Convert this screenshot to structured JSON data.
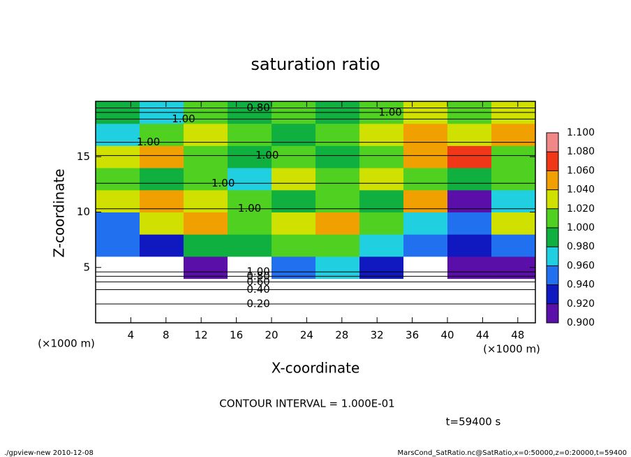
{
  "chart_data": {
    "type": "contour",
    "title": "saturation ratio",
    "xlabel": "X-coordinate",
    "ylabel": "Z-coordinate",
    "x_unit_left": "(×1000 m)",
    "x_unit_right": "(×1000 m)",
    "contour_interval": "CONTOUR INTERVAL = 1.000E-01",
    "time_label": "t=59400 s",
    "footer_left": "./gpview-new   2010-12-08",
    "footer_right": "MarsCond_SatRatio.nc@SatRatio,x=0:50000,z=0:20000,t=59400",
    "xlim": [
      0,
      50
    ],
    "ylim": [
      0,
      20
    ],
    "xticks": [
      4,
      8,
      12,
      16,
      20,
      24,
      28,
      32,
      36,
      40,
      44,
      48
    ],
    "yticks": [
      5,
      10,
      15
    ],
    "x": [
      2.5,
      7.5,
      12.5,
      17.5,
      22.5,
      27.5,
      32.5,
      37.5,
      42.5,
      47.5
    ],
    "y": [
      1,
      3,
      5,
      7,
      9,
      11,
      13,
      15,
      17,
      19
    ],
    "z": [
      [
        0.2,
        0.2,
        0.2,
        0.2,
        0.2,
        0.2,
        0.2,
        0.2,
        0.2,
        0.2
      ],
      [
        0.5,
        0.5,
        0.5,
        0.5,
        0.5,
        0.5,
        0.5,
        0.5,
        0.5,
        0.5
      ],
      [
        0.85,
        0.88,
        0.9,
        0.86,
        0.95,
        0.97,
        0.93,
        0.88,
        0.9,
        0.92
      ],
      [
        0.96,
        0.94,
        0.99,
        1.0,
        1.02,
        1.01,
        0.97,
        0.95,
        0.94,
        0.96
      ],
      [
        0.95,
        1.03,
        1.05,
        1.01,
        1.04,
        1.06,
        1.02,
        0.98,
        0.95,
        1.03
      ],
      [
        1.04,
        1.06,
        1.03,
        1.01,
        1.0,
        1.02,
        1.0,
        1.05,
        0.92,
        0.97
      ],
      [
        1.01,
        1.0,
        1.02,
        0.97,
        1.03,
        1.01,
        1.04,
        1.02,
        1.0,
        1.01
      ],
      [
        1.03,
        1.05,
        1.01,
        1.0,
        1.01,
        1.0,
        1.02,
        1.05,
        1.07,
        1.02
      ],
      [
        0.97,
        1.02,
        1.03,
        1.01,
        1.0,
        1.02,
        1.04,
        1.06,
        1.03,
        1.05
      ],
      [
        1.0,
        0.97,
        1.01,
        1.0,
        1.02,
        1.0,
        1.01,
        1.03,
        1.02,
        1.04
      ]
    ],
    "colorbar_ticks": [
      {
        "value": 0.9,
        "label": "0.900"
      },
      {
        "value": 0.92,
        "label": "0.920"
      },
      {
        "value": 0.94,
        "label": "0.940"
      },
      {
        "value": 0.96,
        "label": "0.960"
      },
      {
        "value": 0.98,
        "label": "0.980"
      },
      {
        "value": 1.0,
        "label": "1.000"
      },
      {
        "value": 1.02,
        "label": "1.020"
      },
      {
        "value": 1.04,
        "label": "1.040"
      },
      {
        "value": 1.06,
        "label": "1.060"
      },
      {
        "value": 1.08,
        "label": "1.080"
      },
      {
        "value": 1.1,
        "label": "1.100"
      }
    ],
    "colors": [
      "#5a10a8",
      "#1018c0",
      "#2070f0",
      "#20d0e0",
      "#10b040",
      "#50d020",
      "#d0e000",
      "#f0a000",
      "#f03818",
      "#f08888"
    ],
    "under_color": "#ffffff",
    "over_color": "#f8c0c0",
    "contour_labels": [
      {
        "label": "0.20",
        "value": 0.2,
        "x": 18.5,
        "z": 1.7
      },
      {
        "label": "0.40",
        "value": 0.4,
        "x": 18.5,
        "z": 3.0
      },
      {
        "label": "0.60",
        "value": 0.6,
        "x": 18.5,
        "z": 3.7
      },
      {
        "label": "0.80",
        "value": 0.8,
        "x": 18.5,
        "z": 4.2
      },
      {
        "label": "1.00",
        "value": 1.0,
        "x": 18.5,
        "z": 4.6
      },
      {
        "label": "0.80",
        "value": 0.8,
        "x": 18.5,
        "z": 19.4
      },
      {
        "label": "1.00",
        "value": 1.0,
        "x": 33.5,
        "z": 19.0
      },
      {
        "label": "1.00",
        "value": 1.0,
        "x": 10.0,
        "z": 18.4
      },
      {
        "label": "1.00",
        "value": 1.0,
        "x": 6.0,
        "z": 16.3
      },
      {
        "label": "1.00",
        "value": 1.0,
        "x": 19.5,
        "z": 15.1
      },
      {
        "label": "1.00",
        "value": 1.0,
        "x": 14.5,
        "z": 12.6
      },
      {
        "label": "1.00",
        "value": 1.0,
        "x": 17.5,
        "z": 10.3
      }
    ]
  }
}
